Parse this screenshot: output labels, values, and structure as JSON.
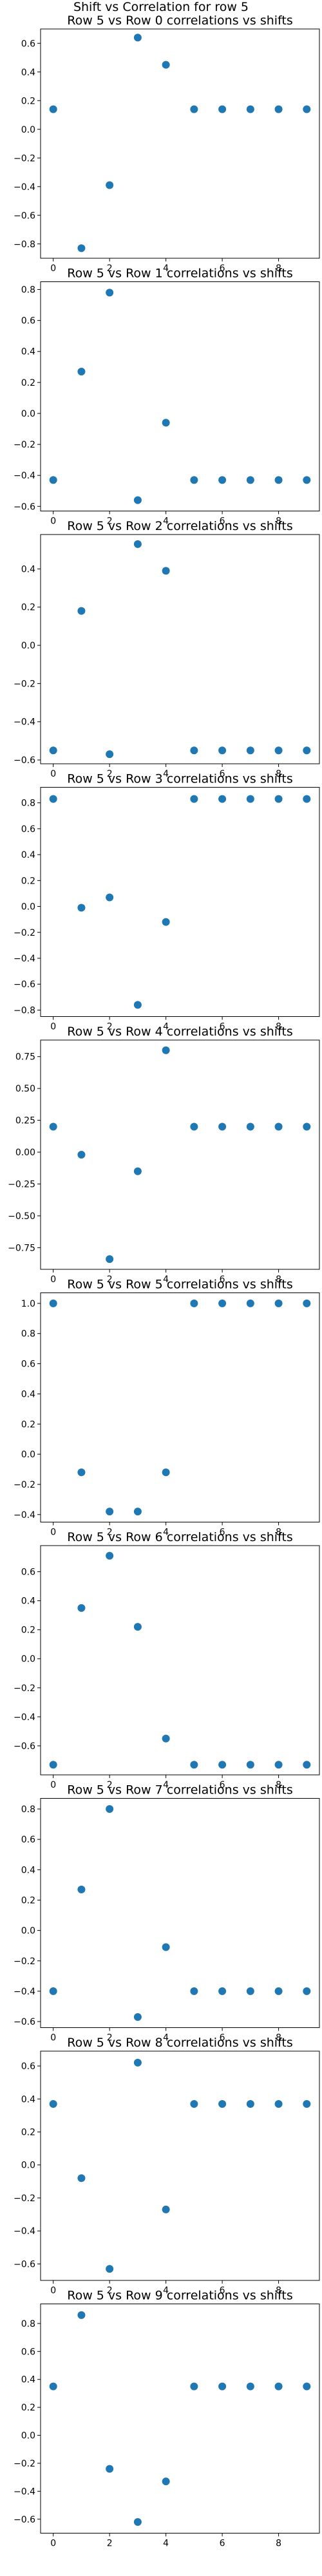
{
  "suptitle": "Shift vs Correlation for row 5",
  "colors": {
    "marker": "#1f77b4"
  },
  "chart_data": [
    {
      "type": "scatter",
      "title": "Row 5 vs Row 0 correlations vs shifts",
      "x": [
        0,
        1,
        2,
        3,
        4,
        5,
        6,
        7,
        8,
        9
      ],
      "y": [
        0.14,
        -0.83,
        -0.39,
        0.64,
        0.45,
        0.14,
        0.14,
        0.14,
        0.14,
        0.14
      ],
      "xlim": [
        -0.45,
        9.45
      ],
      "ylim": [
        -0.9,
        0.7
      ],
      "xticks": [
        0,
        2,
        4,
        6,
        8
      ],
      "yticks": [
        -0.8,
        -0.6,
        -0.4,
        -0.2,
        0.0,
        0.2,
        0.4,
        0.6
      ],
      "yticklabels": [
        "−0.8",
        "−0.6",
        "−0.4",
        "−0.2",
        "0.0",
        "0.2",
        "0.4",
        "0.6"
      ]
    },
    {
      "type": "scatter",
      "title": "Row 5 vs Row 1 correlations vs shifts",
      "x": [
        0,
        1,
        2,
        3,
        4,
        5,
        6,
        7,
        8,
        9
      ],
      "y": [
        -0.43,
        0.27,
        0.78,
        -0.56,
        -0.06,
        -0.43,
        -0.43,
        -0.43,
        -0.43,
        -0.43
      ],
      "xlim": [
        -0.45,
        9.45
      ],
      "ylim": [
        -0.63,
        0.85
      ],
      "xticks": [
        0,
        2,
        4,
        6,
        8
      ],
      "yticks": [
        -0.6,
        -0.4,
        -0.2,
        0.0,
        0.2,
        0.4,
        0.6,
        0.8
      ],
      "yticklabels": [
        "−0.6",
        "−0.4",
        "−0.2",
        "0.0",
        "0.2",
        "0.4",
        "0.6",
        "0.8"
      ]
    },
    {
      "type": "scatter",
      "title": "Row 5 vs Row 2 correlations vs shifts",
      "x": [
        0,
        1,
        2,
        3,
        4,
        5,
        6,
        7,
        8,
        9
      ],
      "y": [
        -0.55,
        0.18,
        -0.57,
        0.53,
        0.39,
        -0.55,
        -0.55,
        -0.55,
        -0.55,
        -0.55
      ],
      "xlim": [
        -0.45,
        9.45
      ],
      "ylim": [
        -0.62,
        0.58
      ],
      "xticks": [
        0,
        2,
        4,
        6,
        8
      ],
      "yticks": [
        -0.6,
        -0.4,
        -0.2,
        0.0,
        0.2,
        0.4
      ],
      "yticklabels": [
        "−0.6",
        "−0.4",
        "−0.2",
        "0.0",
        "0.2",
        "0.4"
      ]
    },
    {
      "type": "scatter",
      "title": "Row 5 vs Row 3 correlations vs shifts",
      "x": [
        0,
        1,
        2,
        3,
        4,
        5,
        6,
        7,
        8,
        9
      ],
      "y": [
        0.83,
        -0.01,
        0.07,
        -0.76,
        -0.12,
        0.83,
        0.83,
        0.83,
        0.83,
        0.83
      ],
      "xlim": [
        -0.45,
        9.45
      ],
      "ylim": [
        -0.85,
        0.92
      ],
      "xticks": [
        0,
        2,
        4,
        6,
        8
      ],
      "yticks": [
        -0.8,
        -0.6,
        -0.4,
        -0.2,
        0.0,
        0.2,
        0.4,
        0.6,
        0.8
      ],
      "yticklabels": [
        "−0.8",
        "−0.6",
        "−0.4",
        "−0.2",
        "0.0",
        "0.2",
        "0.4",
        "0.6",
        "0.8"
      ]
    },
    {
      "type": "scatter",
      "title": "Row 5 vs Row 4 correlations vs shifts",
      "x": [
        0,
        1,
        2,
        3,
        4,
        5,
        6,
        7,
        8,
        9
      ],
      "y": [
        0.2,
        -0.02,
        -0.84,
        -0.15,
        0.8,
        0.2,
        0.2,
        0.2,
        0.2,
        0.2
      ],
      "xlim": [
        -0.45,
        9.45
      ],
      "ylim": [
        -0.92,
        0.88
      ],
      "xticks": [
        0,
        2,
        4,
        6,
        8
      ],
      "yticks": [
        -0.75,
        -0.5,
        -0.25,
        0.0,
        0.25,
        0.5,
        0.75
      ],
      "yticklabels": [
        "−0.75",
        "−0.50",
        "−0.25",
        "0.00",
        "0.25",
        "0.50",
        "0.75"
      ]
    },
    {
      "type": "scatter",
      "title": "Row 5 vs Row 5 correlations vs shifts",
      "x": [
        0,
        1,
        2,
        3,
        4,
        5,
        6,
        7,
        8,
        9
      ],
      "y": [
        1.0,
        -0.12,
        -0.38,
        -0.38,
        -0.12,
        1.0,
        1.0,
        1.0,
        1.0,
        1.0
      ],
      "xlim": [
        -0.45,
        9.45
      ],
      "ylim": [
        -0.45,
        1.07
      ],
      "xticks": [
        0,
        2,
        4,
        6,
        8
      ],
      "yticks": [
        -0.4,
        -0.2,
        0.0,
        0.2,
        0.4,
        0.6,
        0.8,
        1.0
      ],
      "yticklabels": [
        "−0.4",
        "−0.2",
        "0.0",
        "0.2",
        "0.4",
        "0.6",
        "0.8",
        "1.0"
      ]
    },
    {
      "type": "scatter",
      "title": "Row 5 vs Row 6 correlations vs shifts",
      "x": [
        0,
        1,
        2,
        3,
        4,
        5,
        6,
        7,
        8,
        9
      ],
      "y": [
        -0.73,
        0.35,
        0.71,
        0.22,
        -0.55,
        -0.73,
        -0.73,
        -0.73,
        -0.73,
        -0.73
      ],
      "xlim": [
        -0.45,
        9.45
      ],
      "ylim": [
        -0.8,
        0.78
      ],
      "xticks": [
        0,
        2,
        4,
        6,
        8
      ],
      "yticks": [
        -0.6,
        -0.4,
        -0.2,
        0.0,
        0.2,
        0.4,
        0.6
      ],
      "yticklabels": [
        "−0.6",
        "−0.4",
        "−0.2",
        "0.0",
        "0.2",
        "0.4",
        "0.6"
      ]
    },
    {
      "type": "scatter",
      "title": "Row 5 vs Row 7 correlations vs shifts",
      "x": [
        0,
        1,
        2,
        3,
        4,
        5,
        6,
        7,
        8,
        9
      ],
      "y": [
        -0.4,
        0.27,
        0.8,
        -0.57,
        -0.11,
        -0.4,
        -0.4,
        -0.4,
        -0.4,
        -0.4
      ],
      "xlim": [
        -0.45,
        9.45
      ],
      "ylim": [
        -0.64,
        0.87
      ],
      "xticks": [
        0,
        2,
        4,
        6,
        8
      ],
      "yticks": [
        -0.6,
        -0.4,
        -0.2,
        0.0,
        0.2,
        0.4,
        0.6,
        0.8
      ],
      "yticklabels": [
        "−0.6",
        "−0.4",
        "−0.2",
        "0.0",
        "0.2",
        "0.4",
        "0.6",
        "0.8"
      ]
    },
    {
      "type": "scatter",
      "title": "Row 5 vs Row 8 correlations vs shifts",
      "x": [
        0,
        1,
        2,
        3,
        4,
        5,
        6,
        7,
        8,
        9
      ],
      "y": [
        0.37,
        -0.08,
        -0.63,
        0.62,
        -0.27,
        0.37,
        0.37,
        0.37,
        0.37,
        0.37
      ],
      "xlim": [
        -0.45,
        9.45
      ],
      "ylim": [
        -0.7,
        0.69
      ],
      "xticks": [
        0,
        2,
        4,
        6,
        8
      ],
      "yticks": [
        -0.6,
        -0.4,
        -0.2,
        0.0,
        0.2,
        0.4,
        0.6
      ],
      "yticklabels": [
        "−0.6",
        "−0.4",
        "−0.2",
        "0.0",
        "0.2",
        "0.4",
        "0.6"
      ]
    },
    {
      "type": "scatter",
      "title": "Row 5 vs Row 9 correlations vs shifts",
      "x": [
        0,
        1,
        2,
        3,
        4,
        5,
        6,
        7,
        8,
        9
      ],
      "y": [
        0.35,
        0.86,
        -0.24,
        -0.62,
        -0.33,
        0.35,
        0.35,
        0.35,
        0.35,
        0.35
      ],
      "xlim": [
        -0.45,
        9.45
      ],
      "ylim": [
        -0.7,
        0.94
      ],
      "xticks": [
        0,
        2,
        4,
        6,
        8
      ],
      "yticks": [
        -0.6,
        -0.4,
        -0.2,
        0.0,
        0.2,
        0.4,
        0.6,
        0.8
      ],
      "yticklabels": [
        "−0.6",
        "−0.4",
        "−0.2",
        "0.0",
        "0.2",
        "0.4",
        "0.6",
        "0.8"
      ]
    }
  ]
}
